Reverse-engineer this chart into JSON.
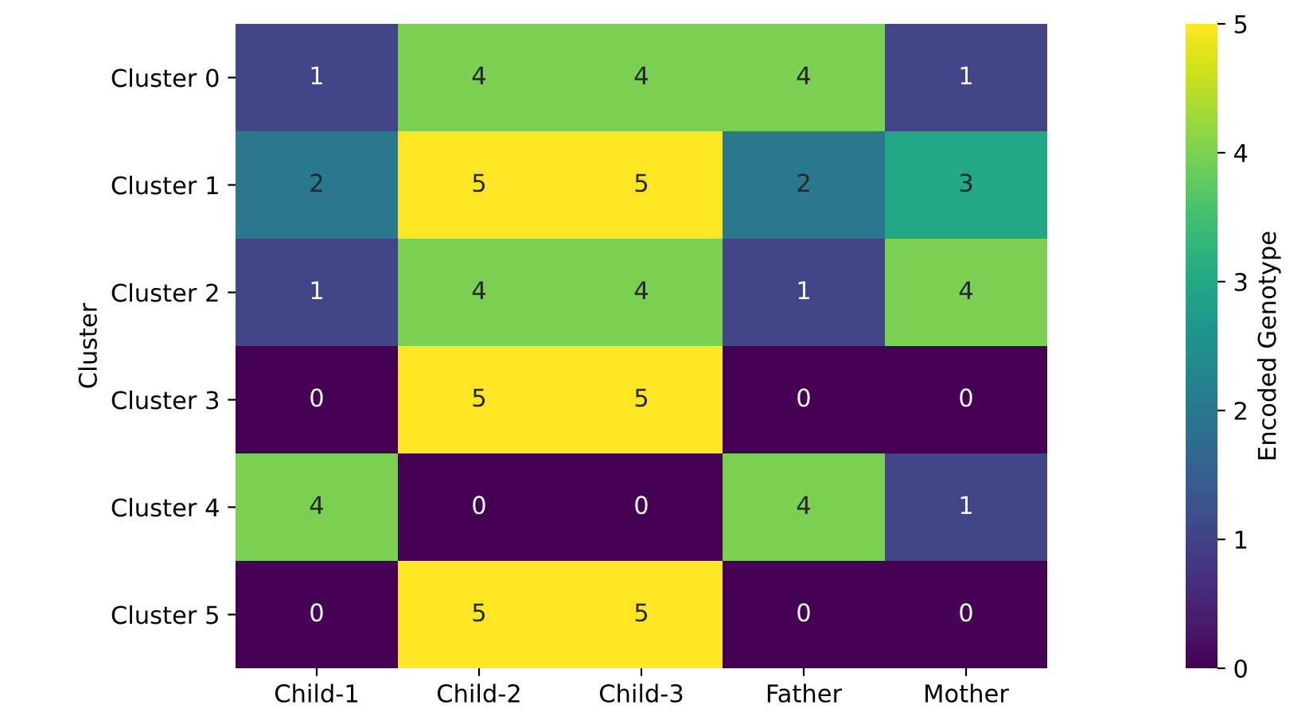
{
  "chart_data": {
    "type": "heatmap",
    "ylabel": "Cluster",
    "clabel": "Encoded Genotype",
    "categories": [
      "Child-1",
      "Child-2",
      "Child-3",
      "Father",
      "Mother"
    ],
    "y_categories": [
      "Cluster 0",
      "Cluster 1",
      "Cluster 2",
      "Cluster 3",
      "Cluster 4",
      "Cluster 5"
    ],
    "cells": [
      [
        1,
        4,
        4,
        4,
        1
      ],
      [
        2,
        5,
        5,
        2,
        3
      ],
      [
        1,
        4,
        4,
        1,
        4
      ],
      [
        0,
        5,
        5,
        0,
        0
      ],
      [
        4,
        0,
        0,
        4,
        1
      ],
      [
        0,
        5,
        5,
        0,
        0
      ]
    ],
    "clim": [
      0,
      5
    ],
    "cticks": [
      0,
      1,
      2,
      3,
      4,
      5
    ],
    "data_labels": true
  }
}
